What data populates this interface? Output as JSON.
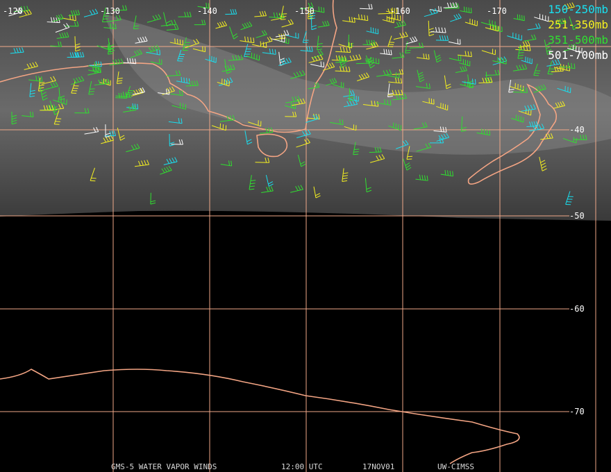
{
  "map": {
    "longitude_labels": [
      "-120",
      "-130",
      "-140",
      "-150",
      "-160",
      "-170"
    ],
    "latitude_labels": [
      "-40",
      "-50",
      "-60",
      "-70"
    ],
    "legend": [
      {
        "label": "150-250mb",
        "color": "#19e0f0"
      },
      {
        "label": "251-350mb",
        "color": "#f5f020"
      },
      {
        "label": "351-500mb",
        "color": "#30e030"
      },
      {
        "label": "501-700mb",
        "color": "#ffffff"
      }
    ],
    "footer": [
      "GMS-5 WATER VAPOR WINDS",
      "12:00 UTC",
      "17NOV01",
      "UW-CIMSS"
    ]
  }
}
